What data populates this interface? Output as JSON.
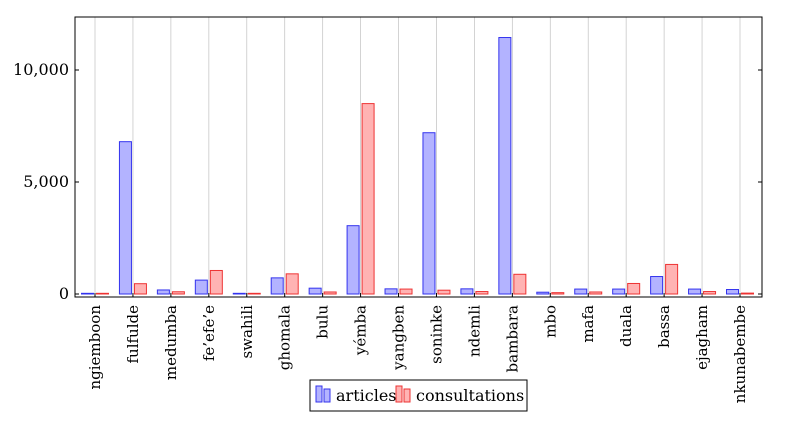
{
  "chart_data": {
    "type": "bar",
    "title": "",
    "xlabel": "",
    "ylabel": "",
    "ylim": [
      0,
      12000
    ],
    "y_ticks": [
      0,
      5000,
      10000
    ],
    "y_tick_labels": [
      "0",
      "5,000",
      "10,000"
    ],
    "grid": "vertical",
    "legend_position": "bottom",
    "categories": [
      "ngiemboon",
      "fulfulde",
      "medumba",
      "fe’efe’e",
      "swahili",
      "ghomala",
      "bulu",
      "yémba",
      "yangben",
      "soninke",
      "ndemli",
      "bambara",
      "mbo",
      "mafa",
      "duala",
      "bassa",
      "ejagham",
      "nkunabembe"
    ],
    "series": [
      {
        "name": "articles",
        "color": "#b3b3ff",
        "stroke": "#3333ee",
        "values": [
          30,
          6800,
          180,
          620,
          30,
          720,
          260,
          3050,
          230,
          7200,
          230,
          11450,
          80,
          220,
          220,
          780,
          220,
          200
        ]
      },
      {
        "name": "consultations",
        "color": "#ffb3b3",
        "stroke": "#ee3333",
        "values": [
          30,
          460,
          100,
          1050,
          30,
          900,
          90,
          8500,
          220,
          170,
          110,
          880,
          60,
          90,
          470,
          1320,
          110,
          40
        ]
      }
    ]
  }
}
